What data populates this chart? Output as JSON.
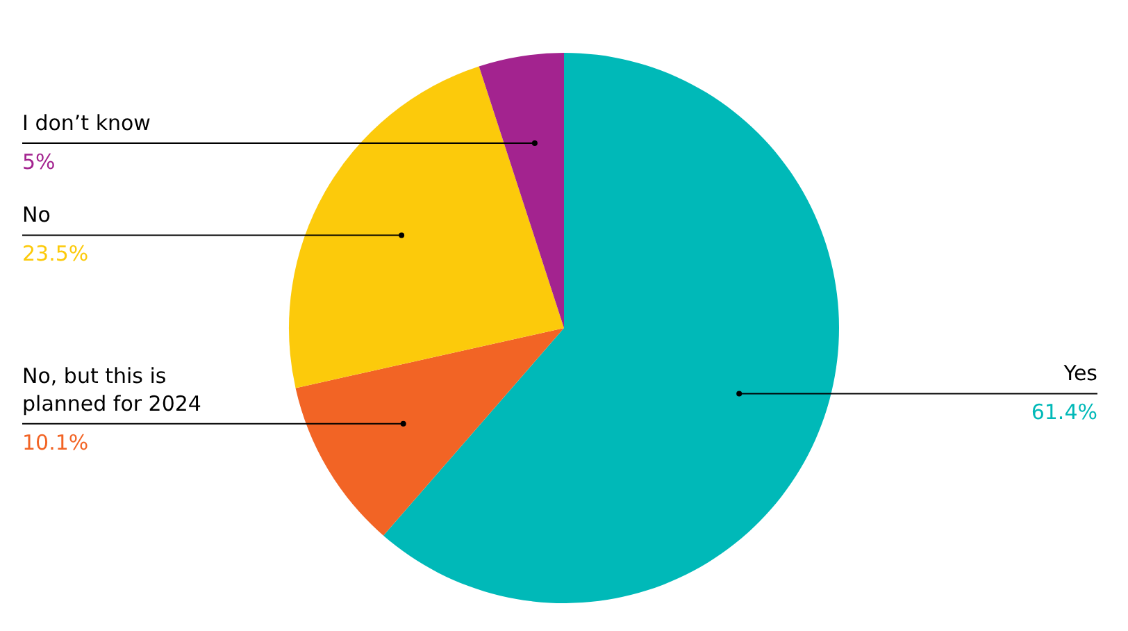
{
  "chart_data": {
    "type": "pie",
    "categories": [
      "Yes",
      "No, but this is planned for 2024",
      "No",
      "I don’t know"
    ],
    "values": [
      61.4,
      10.1,
      23.5,
      5
    ],
    "colors": [
      "#00b9b8",
      "#f26425",
      "#fcca0b",
      "#a3238f"
    ],
    "value_labels": [
      "61.4%",
      "10.1%",
      "23.5%",
      "5%"
    ],
    "legend": false
  }
}
